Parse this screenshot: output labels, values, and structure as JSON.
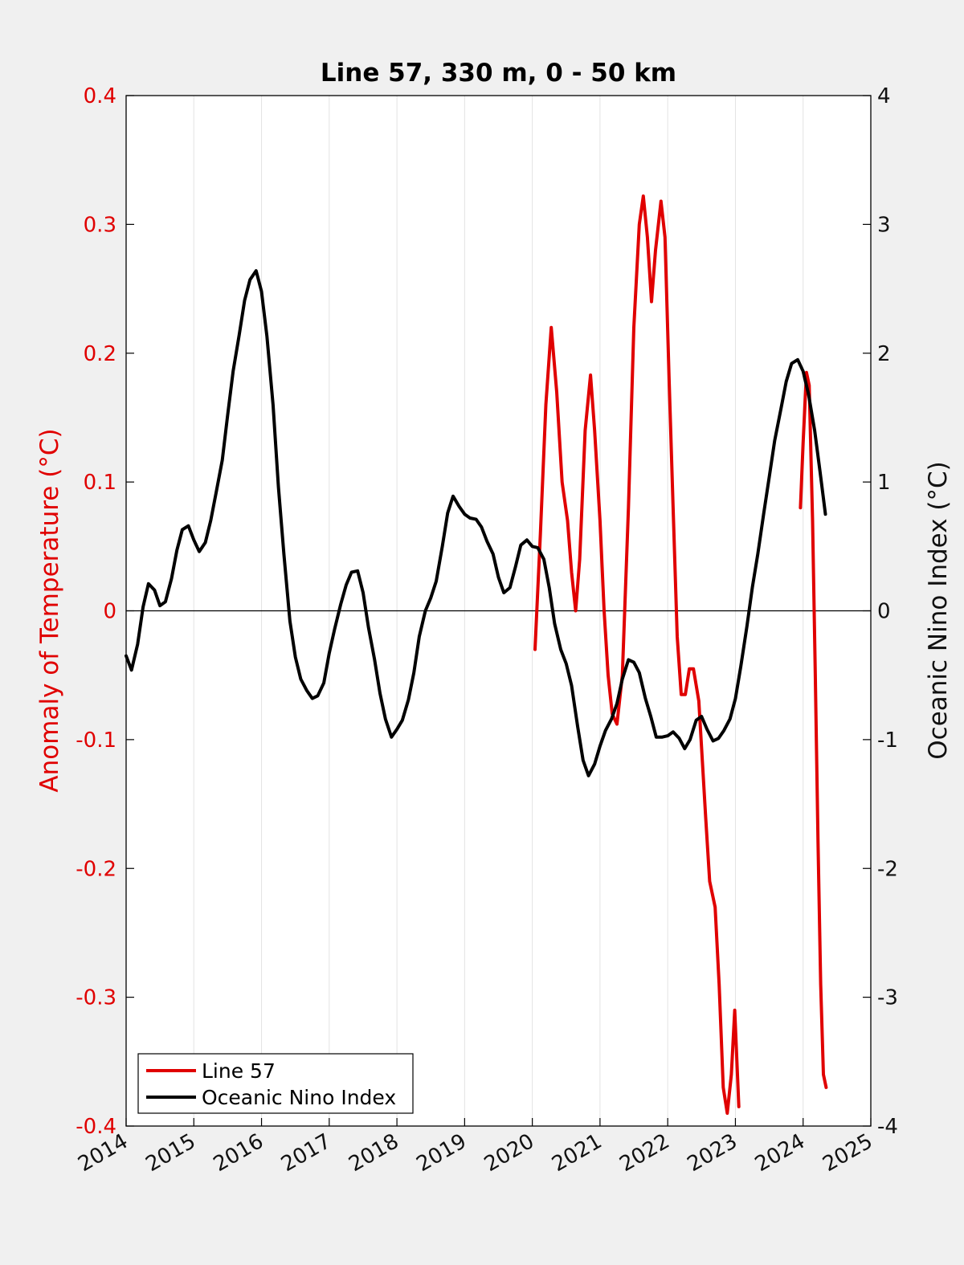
{
  "chart_data": {
    "type": "line",
    "title": "Line 57, 330 m, 0 - 50 km",
    "xlabel": "",
    "xlim": [
      2014,
      2025
    ],
    "x_ticks": [
      "2014",
      "2015",
      "2016",
      "2017",
      "2018",
      "2019",
      "2020",
      "2021",
      "2022",
      "2023",
      "2024",
      "2025"
    ],
    "y_left": {
      "label": "Anomaly of Temperature (°C)",
      "lim": [
        -0.4,
        0.4
      ],
      "ticks": [
        "-0.4",
        "-0.3",
        "-0.2",
        "-0.1",
        "0",
        "0.1",
        "0.2",
        "0.3",
        "0.4"
      ],
      "color": "#e00000"
    },
    "y_right": {
      "label": "Oceanic Nino Index (°C)",
      "lim": [
        -4,
        4
      ],
      "ticks": [
        "-4",
        "-3",
        "-2",
        "-1",
        "0",
        "1",
        "2",
        "3",
        "4"
      ],
      "color": "#111111"
    },
    "grid": "vertical",
    "zero_line": true,
    "legend": {
      "location": "bottom-left"
    },
    "series": [
      {
        "name": "Line 57",
        "axis": "left",
        "color": "#e00000",
        "segments": [
          [
            [
              2020.04,
              -0.03
            ],
            [
              2020.12,
              0.06
            ],
            [
              2020.2,
              0.16
            ],
            [
              2020.28,
              0.22
            ],
            [
              2020.36,
              0.17
            ],
            [
              2020.44,
              0.1
            ],
            [
              2020.52,
              0.07
            ],
            [
              2020.58,
              0.03
            ],
            [
              2020.64,
              0.0
            ],
            [
              2020.7,
              0.04
            ],
            [
              2020.78,
              0.14
            ],
            [
              2020.86,
              0.183
            ],
            [
              2020.92,
              0.14
            ],
            [
              2021.0,
              0.07
            ],
            [
              2021.06,
              0.0
            ],
            [
              2021.12,
              -0.05
            ],
            [
              2021.18,
              -0.08
            ],
            [
              2021.25,
              -0.088
            ],
            [
              2021.33,
              -0.05
            ],
            [
              2021.42,
              0.08
            ],
            [
              2021.5,
              0.22
            ],
            [
              2021.58,
              0.3
            ],
            [
              2021.64,
              0.322
            ],
            [
              2021.7,
              0.29
            ],
            [
              2021.76,
              0.24
            ],
            [
              2021.82,
              0.28
            ],
            [
              2021.9,
              0.318
            ],
            [
              2021.96,
              0.29
            ],
            [
              2022.02,
              0.18
            ],
            [
              2022.08,
              0.08
            ],
            [
              2022.14,
              -0.02
            ],
            [
              2022.2,
              -0.065
            ],
            [
              2022.26,
              -0.065
            ],
            [
              2022.32,
              -0.045
            ],
            [
              2022.38,
              -0.045
            ],
            [
              2022.46,
              -0.07
            ],
            [
              2022.56,
              -0.16
            ],
            [
              2022.62,
              -0.21
            ],
            [
              2022.7,
              -0.23
            ],
            [
              2022.76,
              -0.29
            ],
            [
              2022.82,
              -0.37
            ],
            [
              2022.88,
              -0.39
            ],
            [
              2022.94,
              -0.36
            ],
            [
              2022.99,
              -0.31
            ],
            [
              2023.05,
              -0.385
            ]
          ],
          [
            [
              2023.96,
              0.08
            ],
            [
              2024.0,
              0.13
            ],
            [
              2024.05,
              0.185
            ],
            [
              2024.09,
              0.175
            ],
            [
              2024.14,
              0.07
            ],
            [
              2024.18,
              -0.05
            ],
            [
              2024.22,
              -0.18
            ],
            [
              2024.26,
              -0.29
            ],
            [
              2024.3,
              -0.36
            ],
            [
              2024.34,
              -0.37
            ]
          ]
        ]
      },
      {
        "name": "Oceanic Nino Index",
        "axis": "right",
        "color": "#000000",
        "segments": [
          [
            [
              2014.0,
              -0.35
            ],
            [
              2014.08,
              -0.46
            ],
            [
              2014.17,
              -0.26
            ],
            [
              2014.25,
              0.03
            ],
            [
              2014.33,
              0.21
            ],
            [
              2014.42,
              0.16
            ],
            [
              2014.5,
              0.04
            ],
            [
              2014.58,
              0.07
            ],
            [
              2014.67,
              0.25
            ],
            [
              2014.75,
              0.47
            ],
            [
              2014.83,
              0.63
            ],
            [
              2014.92,
              0.66
            ],
            [
              2015.0,
              0.55
            ],
            [
              2015.08,
              0.46
            ],
            [
              2015.17,
              0.53
            ],
            [
              2015.25,
              0.7
            ],
            [
              2015.33,
              0.92
            ],
            [
              2015.42,
              1.17
            ],
            [
              2015.5,
              1.52
            ],
            [
              2015.58,
              1.86
            ],
            [
              2015.67,
              2.14
            ],
            [
              2015.75,
              2.41
            ],
            [
              2015.83,
              2.57
            ],
            [
              2015.92,
              2.64
            ],
            [
              2016.0,
              2.48
            ],
            [
              2016.08,
              2.13
            ],
            [
              2016.17,
              1.6
            ],
            [
              2016.25,
              0.96
            ],
            [
              2016.33,
              0.44
            ],
            [
              2016.42,
              -0.08
            ],
            [
              2016.5,
              -0.36
            ],
            [
              2016.58,
              -0.53
            ],
            [
              2016.67,
              -0.62
            ],
            [
              2016.75,
              -0.68
            ],
            [
              2016.83,
              -0.66
            ],
            [
              2016.92,
              -0.56
            ],
            [
              2017.0,
              -0.33
            ],
            [
              2017.08,
              -0.14
            ],
            [
              2017.17,
              0.05
            ],
            [
              2017.25,
              0.2
            ],
            [
              2017.33,
              0.3
            ],
            [
              2017.42,
              0.31
            ],
            [
              2017.5,
              0.14
            ],
            [
              2017.58,
              -0.13
            ],
            [
              2017.67,
              -0.38
            ],
            [
              2017.75,
              -0.64
            ],
            [
              2017.83,
              -0.84
            ],
            [
              2017.92,
              -0.98
            ],
            [
              2018.0,
              -0.92
            ],
            [
              2018.08,
              -0.85
            ],
            [
              2018.17,
              -0.69
            ],
            [
              2018.25,
              -0.48
            ],
            [
              2018.33,
              -0.2
            ],
            [
              2018.42,
              0.0
            ],
            [
              2018.5,
              0.1
            ],
            [
              2018.58,
              0.23
            ],
            [
              2018.67,
              0.5
            ],
            [
              2018.75,
              0.76
            ],
            [
              2018.83,
              0.89
            ],
            [
              2018.92,
              0.81
            ],
            [
              2019.0,
              0.75
            ],
            [
              2019.08,
              0.72
            ],
            [
              2019.17,
              0.71
            ],
            [
              2019.25,
              0.65
            ],
            [
              2019.33,
              0.54
            ],
            [
              2019.42,
              0.44
            ],
            [
              2019.5,
              0.26
            ],
            [
              2019.58,
              0.14
            ],
            [
              2019.67,
              0.18
            ],
            [
              2019.75,
              0.34
            ],
            [
              2019.83,
              0.51
            ],
            [
              2019.92,
              0.55
            ],
            [
              2020.0,
              0.5
            ],
            [
              2020.08,
              0.49
            ],
            [
              2020.17,
              0.4
            ],
            [
              2020.25,
              0.18
            ],
            [
              2020.33,
              -0.1
            ],
            [
              2020.42,
              -0.3
            ],
            [
              2020.5,
              -0.41
            ],
            [
              2020.58,
              -0.58
            ],
            [
              2020.67,
              -0.9
            ],
            [
              2020.75,
              -1.16
            ],
            [
              2020.83,
              -1.28
            ],
            [
              2020.92,
              -1.19
            ],
            [
              2021.0,
              -1.05
            ],
            [
              2021.08,
              -0.93
            ],
            [
              2021.17,
              -0.84
            ],
            [
              2021.25,
              -0.72
            ],
            [
              2021.33,
              -0.53
            ],
            [
              2021.42,
              -0.38
            ],
            [
              2021.5,
              -0.4
            ],
            [
              2021.58,
              -0.48
            ],
            [
              2021.67,
              -0.68
            ],
            [
              2021.75,
              -0.82
            ],
            [
              2021.83,
              -0.98
            ],
            [
              2021.92,
              -0.98
            ],
            [
              2022.0,
              -0.97
            ],
            [
              2022.08,
              -0.94
            ],
            [
              2022.17,
              -0.99
            ],
            [
              2022.25,
              -1.07
            ],
            [
              2022.33,
              -1.0
            ],
            [
              2022.42,
              -0.85
            ],
            [
              2022.5,
              -0.82
            ],
            [
              2022.58,
              -0.92
            ],
            [
              2022.67,
              -1.01
            ],
            [
              2022.75,
              -0.99
            ],
            [
              2022.83,
              -0.93
            ],
            [
              2022.92,
              -0.84
            ],
            [
              2023.0,
              -0.68
            ],
            [
              2023.08,
              -0.43
            ],
            [
              2023.17,
              -0.12
            ],
            [
              2023.25,
              0.18
            ],
            [
              2023.33,
              0.44
            ],
            [
              2023.42,
              0.76
            ],
            [
              2023.5,
              1.04
            ],
            [
              2023.58,
              1.32
            ],
            [
              2023.67,
              1.56
            ],
            [
              2023.75,
              1.78
            ],
            [
              2023.83,
              1.92
            ],
            [
              2023.92,
              1.95
            ],
            [
              2024.0,
              1.86
            ],
            [
              2024.08,
              1.68
            ],
            [
              2024.17,
              1.4
            ],
            [
              2024.25,
              1.08
            ],
            [
              2024.33,
              0.75
            ]
          ]
        ]
      }
    ]
  }
}
